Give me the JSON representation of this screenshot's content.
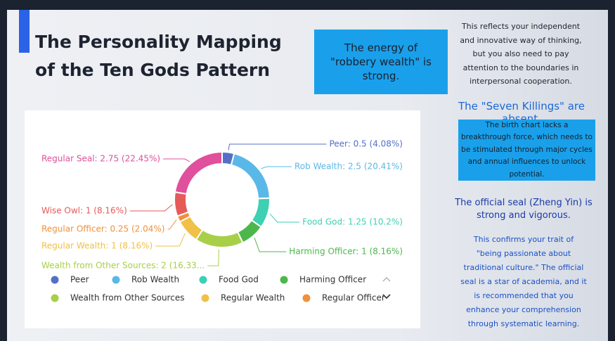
{
  "header": {
    "title": "The Personality Mapping of the Ten Gods Pattern"
  },
  "chart_data": {
    "type": "donut",
    "categories": [
      "Peer",
      "Rob Wealth",
      "Food God",
      "Harming Officer",
      "Wealth from Other Sources",
      "Regular Wealth",
      "Regular Officer",
      "Wise Owl",
      "Regular Seal"
    ],
    "values": [
      0.5,
      2.5,
      1.25,
      1,
      2,
      1,
      0.25,
      1,
      2.75
    ],
    "value_labels": [
      "Peer: 0.5 (4.08%)",
      "Rob Wealth: 2.5 (20.41%)",
      "Food God: 1.25 (10.2%)",
      "Harming Officer: 1 (8.16%)",
      "Wealth from Other Sources: 2 (16.33...",
      "Regular Wealth: 1 (8.16%)",
      "Regular Officer: 0.25 (2.04%)",
      "Wise Owl: 1 (8.16%)",
      "Regular Seal: 2.75 (22.45%)"
    ],
    "colors": [
      "#5470c6",
      "#5ab8e8",
      "#3dd0b3",
      "#4cb84c",
      "#a8cf48",
      "#f0c048",
      "#f0903a",
      "#e65a5a",
      "#e0509c"
    ]
  },
  "insights": [
    {
      "heading": "The energy of \"robbery wealth\" is strong.",
      "text": "This reflects your independent and innovative way of thinking, but you also need to pay attention to the boundaries in interpersonal cooperation."
    },
    {
      "heading": "The \"Seven Killings\" are absent.",
      "text": "The birth chart lacks a breakthrough force, which needs to be stimulated through major cycles and annual influences to unlock potential."
    },
    {
      "heading": "The official seal (Zheng Yin) is strong and vigorous.",
      "text": "This confirms your trait of \"being passionate about traditional culture.\" The official seal is a star of academia, and it is recommended that you enhance your comprehension through systematic learning."
    }
  ]
}
